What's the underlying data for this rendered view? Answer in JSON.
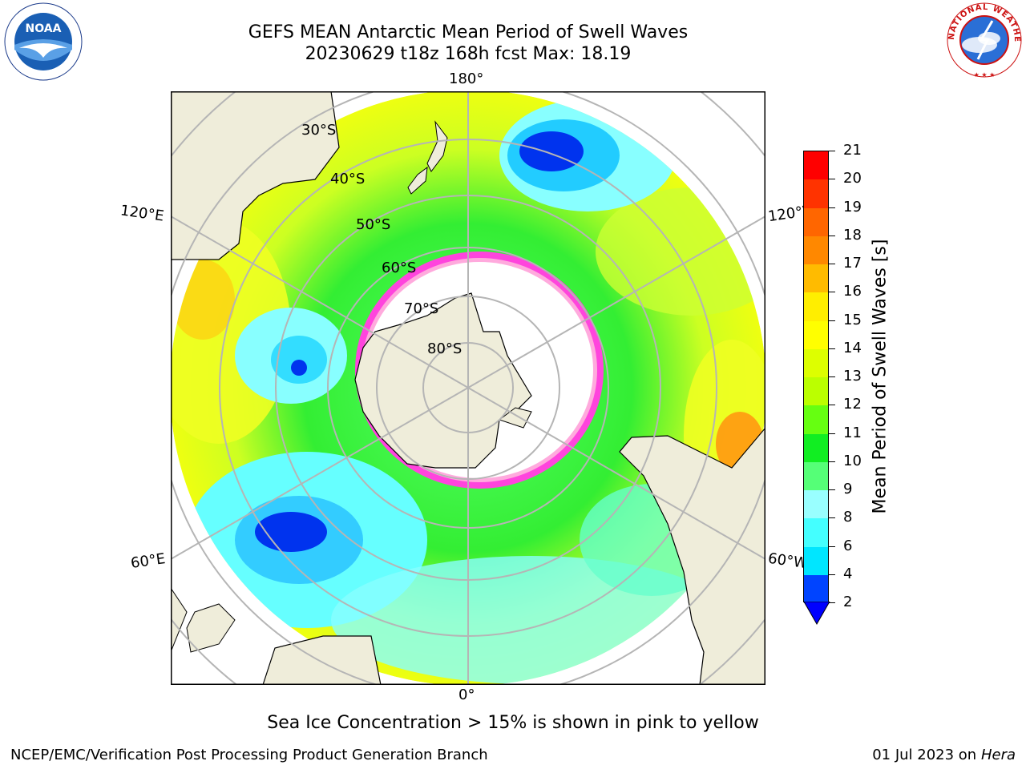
{
  "title": {
    "line1": "GEFS MEAN Antarctic Mean Period of Swell Waves",
    "line2": "20230629 t18z 168h fcst   Max: 18.19"
  },
  "logos": {
    "left": {
      "icon": "noaa-logo",
      "text": "NOAA"
    },
    "right": {
      "icon": "nws-logo",
      "text": "NATIONAL WEATHER SERVICE"
    }
  },
  "map": {
    "projection": "south-polar-stereographic",
    "longitude_labels": [
      "180°",
      "120°E",
      "120°W",
      "60°E",
      "60°W",
      "0°"
    ],
    "latitude_labels": [
      "30°S",
      "40°S",
      "50°S",
      "60°S",
      "70°S",
      "80°S"
    ],
    "colors": {
      "land": "#efedda",
      "ice_free_area": "#ffffff",
      "sea_ice": "#ff44dd",
      "grid": "#b5b5b5"
    }
  },
  "colorbar": {
    "title": "Mean Period of Swell Waves [s]",
    "ticks": [
      "2",
      "4",
      "6",
      "8",
      "9",
      "10",
      "11",
      "12",
      "13",
      "14",
      "15",
      "16",
      "17",
      "18",
      "19",
      "20",
      "21"
    ],
    "colors": [
      "#0044ff",
      "#00e6ff",
      "#44ffff",
      "#99ffff",
      "#55ff77",
      "#11ee22",
      "#66ff11",
      "#bbff00",
      "#ddff00",
      "#ffff00",
      "#ffee00",
      "#ffbb00",
      "#ff8800",
      "#ff6600",
      "#ff3300",
      "#ff0000"
    ],
    "underflow_color": "#0000ff"
  },
  "note": "Sea Ice Concentration > 15% is shown in pink to yellow",
  "footer": {
    "left": "NCEP/EMC/Verification Post Processing Product Generation Branch",
    "date": "01 Jul 2023 on ",
    "host": "Hera"
  }
}
